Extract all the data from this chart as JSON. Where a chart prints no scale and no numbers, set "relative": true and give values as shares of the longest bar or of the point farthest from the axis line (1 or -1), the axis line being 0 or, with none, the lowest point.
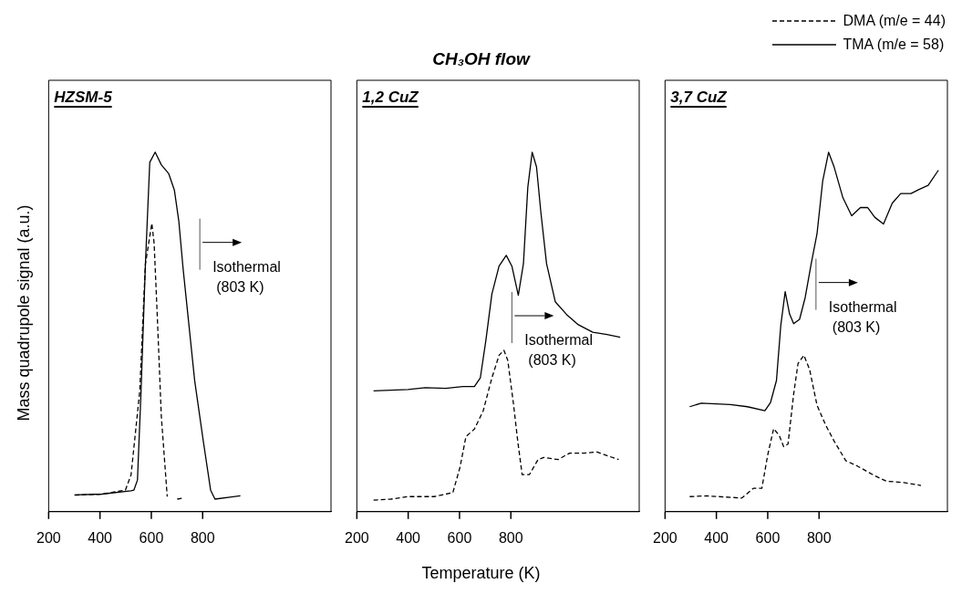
{
  "chart_data": [
    {
      "type": "line",
      "ylabel": "Mass quadrupole signal (a.u.)",
      "relative": true,
      "xlim": [
        200,
        1300
      ],
      "xticks": [
        200,
        400,
        600,
        800
      ],
      "grid": false,
      "marker": "none",
      "annotations": [
        "HZSM-5"
      ],
      "ref_lines": [
        {
          "axis": "x",
          "value": 789,
          "label": "Isothermal\n(803 K)"
        }
      ],
      "series": [
        {
          "color": "#000000",
          "line_style": "dashed",
          "x": [
            301,
            408,
            499,
            521,
            555,
            577,
            602,
            611,
            623,
            639,
            662,
            680,
            701,
            722
          ],
          "values": [
            0.046,
            0.049,
            0.06,
            0.102,
            0.336,
            0.689,
            0.802,
            0.746,
            0.548,
            0.265,
            0.042,
            null,
            0.035,
            0.038
          ]
        },
        {
          "color": "#000000",
          "line_style": "solid",
          "x": [
            301,
            408,
            521,
            532,
            546,
            560,
            577,
            594,
            615,
            639,
            668,
            690,
            707,
            724,
            769,
            803,
            831,
            848,
            947
          ],
          "values": [
            0.047,
            0.049,
            0.058,
            0.06,
            0.088,
            0.336,
            0.689,
            0.972,
            1.0,
            0.965,
            0.94,
            0.894,
            0.809,
            0.675,
            0.364,
            0.194,
            0.06,
            0.035,
            0.044
          ]
        }
      ]
    },
    {
      "type": "line",
      "title": "CH₃OH flow",
      "xlabel": "Temperature (K)",
      "relative": true,
      "xlim": [
        200,
        1300
      ],
      "xticks": [
        200,
        400,
        600,
        800
      ],
      "grid": false,
      "marker": "none",
      "annotations": [
        "1,2 CuZ"
      ],
      "ref_lines": [
        {
          "axis": "x",
          "value": 804,
          "label": "Isothermal\n(803 K)"
        }
      ],
      "series": [
        {
          "color": "#000000",
          "line_style": "dashed",
          "x": [
            265,
            333,
            400,
            501,
            574,
            602,
            625,
            658,
            692,
            726,
            754,
            773,
            788,
            810,
            827,
            844,
            872,
            906,
            928,
            984,
            1029,
            1085,
            1136,
            1175,
            1220
          ],
          "values": [
            0.032,
            0.035,
            0.042,
            0.042,
            0.053,
            0.124,
            0.209,
            0.23,
            0.28,
            0.372,
            0.435,
            0.449,
            0.421,
            0.301,
            0.195,
            0.103,
            0.103,
            0.145,
            0.151,
            0.145,
            0.163,
            0.163,
            0.166,
            0.156,
            0.145
          ]
        },
        {
          "color": "#000000",
          "line_style": "solid",
          "x": [
            265,
            400,
            467,
            546,
            613,
            658,
            681,
            703,
            726,
            754,
            782,
            804,
            829,
            849,
            866,
            883,
            900,
            917,
            939,
            973,
            1018,
            1063,
            1119,
            1175,
            1226
          ],
          "values": [
            0.336,
            0.34,
            0.345,
            0.343,
            0.348,
            0.348,
            0.372,
            0.478,
            0.605,
            0.683,
            0.713,
            0.683,
            0.602,
            0.69,
            0.902,
            1.0,
            0.959,
            0.832,
            0.69,
            0.584,
            0.548,
            0.52,
            0.499,
            0.493,
            0.485
          ]
        }
      ]
    },
    {
      "type": "line",
      "relative": true,
      "xlim": [
        200,
        1300
      ],
      "xticks": [
        200,
        400,
        600,
        800
      ],
      "grid": false,
      "marker": "none",
      "legend": "top right",
      "annotations": [
        "3,7 CuZ"
      ],
      "ref_lines": [
        {
          "axis": "x",
          "value": 788,
          "label": "Isothermal\n(803 K)"
        }
      ],
      "series": [
        {
          "name": "DMA (m/e = 44)",
          "color": "#000000",
          "line_style": "dashed",
          "x": [
            296,
            363,
            499,
            544,
            577,
            600,
            623,
            645,
            662,
            679,
            701,
            718,
            741,
            763,
            792,
            825,
            859,
            904,
            949,
            1017,
            1062,
            1130,
            1197
          ],
          "values": [
            0.042,
            0.044,
            0.038,
            0.065,
            0.065,
            0.158,
            0.231,
            0.212,
            0.181,
            0.188,
            0.327,
            0.412,
            0.435,
            0.396,
            0.296,
            0.242,
            0.196,
            0.142,
            0.127,
            0.1,
            0.085,
            0.081,
            0.073
          ]
        },
        {
          "name": "TMA (m/e = 58)",
          "color": "#000000",
          "line_style": "solid",
          "x": [
            296,
            341,
            454,
            521,
            589,
            611,
            634,
            651,
            668,
            685,
            701,
            724,
            746,
            769,
            792,
            814,
            837,
            859,
            893,
            927,
            961,
            989,
            1017,
            1051,
            1085,
            1118,
            1158,
            1186,
            1225,
            1265
          ],
          "values": [
            0.292,
            0.302,
            0.298,
            0.292,
            0.281,
            0.304,
            0.365,
            0.519,
            0.612,
            0.55,
            0.523,
            0.535,
            0.596,
            0.688,
            0.773,
            0.919,
            1.0,
            0.958,
            0.873,
            0.823,
            0.846,
            0.846,
            0.819,
            0.8,
            0.858,
            0.885,
            0.885,
            0.895,
            0.908,
            0.95
          ]
        }
      ]
    }
  ]
}
